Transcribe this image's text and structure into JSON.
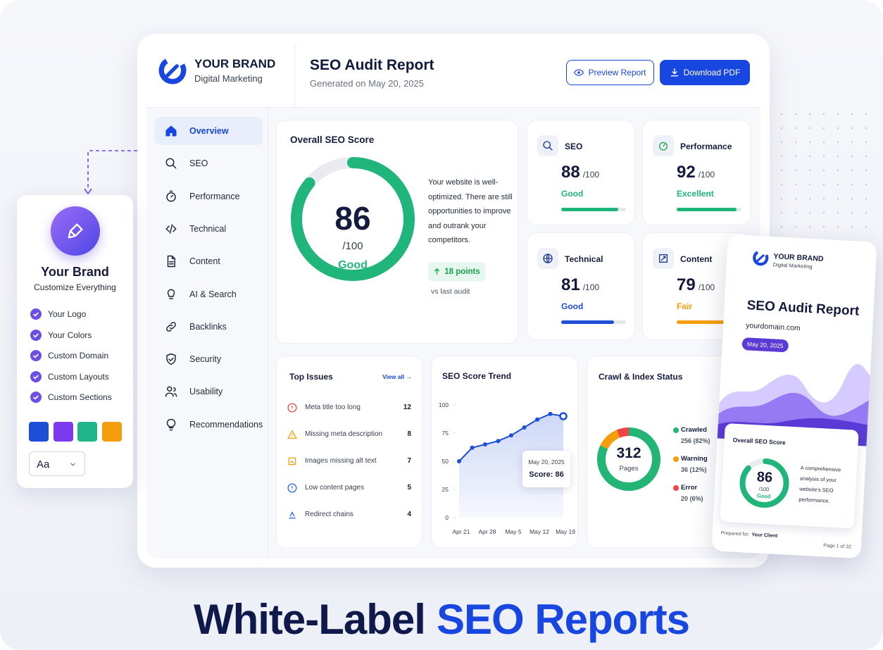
{
  "brand": {
    "name": "YOUR BRAND",
    "tagline": "Digital Marketing"
  },
  "header": {
    "title": "SEO Audit Report",
    "subtitle": "Generated on May 20, 2025",
    "preview_button": "Preview Report",
    "download_button": "Download PDF"
  },
  "nav": [
    "Overview",
    "SEO",
    "Performance",
    "Technical",
    "Content",
    "AI & Search",
    "Backlinks",
    "Security",
    "Usability",
    "Recommendations"
  ],
  "overall": {
    "title": "Overall SEO Score",
    "score": 86,
    "max": {
      "value": 100,
      "label": "/100"
    },
    "rating": "Good",
    "color": "#20b57b",
    "description": "Your website is well-optimized. There are still opportunities to improve and outrank your competitors.",
    "change": "18 points",
    "change_note": "vs last audit"
  },
  "scores": [
    {
      "name": "SEO",
      "score": 88,
      "max": {
        "value": 100,
        "label": "/100"
      },
      "rating": "Good",
      "color": "#1fb57a"
    },
    {
      "name": "Performance",
      "score": 92,
      "max": {
        "value": 100,
        "label": "/100"
      },
      "rating": "Excellent",
      "color": "#1fb57a"
    },
    {
      "name": "Technical",
      "score": 81,
      "max": {
        "value": 100,
        "label": "/100"
      },
      "rating": "Good",
      "color": "#1d4ed8"
    },
    {
      "name": "Content",
      "score": 79,
      "max": {
        "value": 100,
        "label": "/100"
      },
      "rating": "Fair",
      "color": "#f59e0b"
    }
  ],
  "issues": {
    "title": "Top Issues",
    "link": "View all →",
    "items": [
      {
        "label": "Meta title too long",
        "count": 12,
        "color": "#ef4444"
      },
      {
        "label": "Missing meta description",
        "count": 8,
        "color": "#f59e0b"
      },
      {
        "label": "Images missing alt text",
        "count": 7,
        "color": "#f59e0b"
      },
      {
        "label": "Low content pages",
        "count": 5,
        "color": "#2563eb"
      },
      {
        "label": "Redirect chains",
        "count": 4,
        "color": "#2563eb"
      }
    ]
  },
  "trend": {
    "type": "line",
    "title": "SEO Score Trend",
    "categories": [
      "Apr 21",
      null,
      "Apr 28",
      null,
      "May 5",
      null,
      "May 12",
      null,
      "May 19"
    ],
    "values": [
      50,
      62,
      65,
      68,
      73,
      80,
      87,
      92,
      90
    ],
    "ylim": [
      0,
      100
    ],
    "yticks": [
      0,
      25,
      50,
      75,
      100
    ],
    "color": "#1d4ed8",
    "tooltip": {
      "date": "May 20, 2025",
      "label": "Score: 86"
    }
  },
  "crawl": {
    "type": "pie",
    "title": "Crawl & Index Status",
    "total": 312,
    "total_label": "Pages",
    "series": [
      {
        "name": "Crawled",
        "value": 256,
        "value_label": "256 (82%)",
        "color": "#22b573"
      },
      {
        "name": "Warning",
        "value": 36,
        "value_label": "36 (12%)",
        "color": "#f59e0b"
      },
      {
        "name": "Error",
        "value": 20,
        "value_label": "20 (6%)",
        "color": "#ef4444"
      }
    ]
  },
  "customize": {
    "title": "Your Brand",
    "subtitle": "Customize Everything",
    "features": [
      "Your Logo",
      "Your Colors",
      "Custom Domain",
      "Custom Layouts",
      "Custom Sections"
    ],
    "swatches": [
      "#1d4ed8",
      "#7c3aed",
      "#1fb58a",
      "#f59e0b"
    ],
    "font": "Aa"
  },
  "report": {
    "brand": "YOUR BRAND",
    "tagline": "Digital Marketing",
    "title": "SEO Audit Report",
    "domain": "yourdomain.com",
    "date": "May 20, 2025",
    "score_title": "Overall SEO Score",
    "score": 86,
    "max": {
      "value": 100,
      "label": "/100"
    },
    "rating": "Good",
    "description": "A comprehensive analysis of your website's SEO performance.",
    "prepared_label": "Prepared for:",
    "client": "Your Client",
    "page": "Page 1 of 32"
  },
  "headline": {
    "part1": "White-Label",
    "part2": "SEO Reports"
  }
}
